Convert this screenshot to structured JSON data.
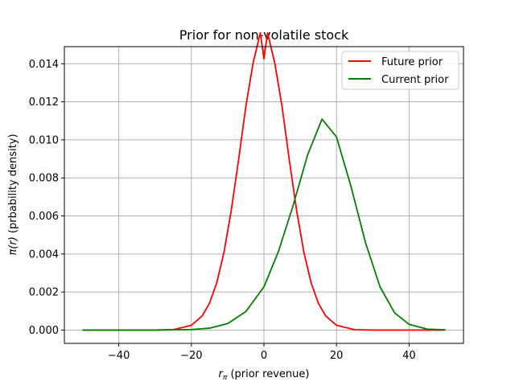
{
  "chart_data": {
    "type": "line",
    "title": "Prior for non-volatile stock",
    "xlabel_main": "r",
    "xlabel_sub": "π",
    "xlabel_rest": " (prior revenue)",
    "ylabel_main": "π(r)",
    "ylabel_rest": " (prbability density)",
    "xlim": [
      -55,
      55
    ],
    "ylim": [
      -0.0007,
      0.0149
    ],
    "xticks": [
      -40,
      -20,
      0,
      20,
      40
    ],
    "xtick_labels": [
      "−40",
      "−20",
      "0",
      "20",
      "40"
    ],
    "yticks": [
      0.0,
      0.002,
      0.004,
      0.006,
      0.008,
      0.01,
      0.012,
      0.014
    ],
    "ytick_labels": [
      "0.000",
      "0.002",
      "0.004",
      "0.006",
      "0.008",
      "0.010",
      "0.012",
      "0.014"
    ],
    "grid": true,
    "legend_position": "top-right",
    "series": [
      {
        "name": "Future prior",
        "color": "#ff0000",
        "x": [
          -50,
          -40,
          -30,
          -25,
          -20,
          -17,
          -15,
          -13,
          -11,
          -9,
          -7,
          -5,
          -3,
          -1,
          0,
          1,
          3,
          5,
          7,
          9,
          11,
          13,
          15,
          17,
          20,
          25,
          30,
          40,
          50
        ],
        "y": [
          0.0,
          0.0,
          0.0,
          2e-05,
          0.00025,
          0.00075,
          0.00141,
          0.00249,
          0.0041,
          0.0063,
          0.00893,
          0.01174,
          0.01402,
          0.01563,
          0.01426,
          0.01563,
          0.01402,
          0.01174,
          0.00893,
          0.0063,
          0.0041,
          0.00249,
          0.00141,
          0.00075,
          0.00025,
          2e-05,
          0.0,
          0.0,
          0.0
        ]
      },
      {
        "name": "Current prior",
        "color": "#008000",
        "x": [
          -50,
          -40,
          -30,
          -20,
          -15,
          -10,
          -5,
          0,
          4,
          8,
          12,
          16,
          20,
          24,
          28,
          32,
          36,
          40,
          45,
          50
        ],
        "y": [
          0.0,
          0.0,
          0.0,
          3e-05,
          0.0001,
          0.00034,
          0.00097,
          0.00227,
          0.00413,
          0.00652,
          0.00919,
          0.01109,
          0.01015,
          0.00755,
          0.00459,
          0.00227,
          0.00091,
          0.0003,
          5e-05,
          1e-05
        ]
      }
    ]
  }
}
